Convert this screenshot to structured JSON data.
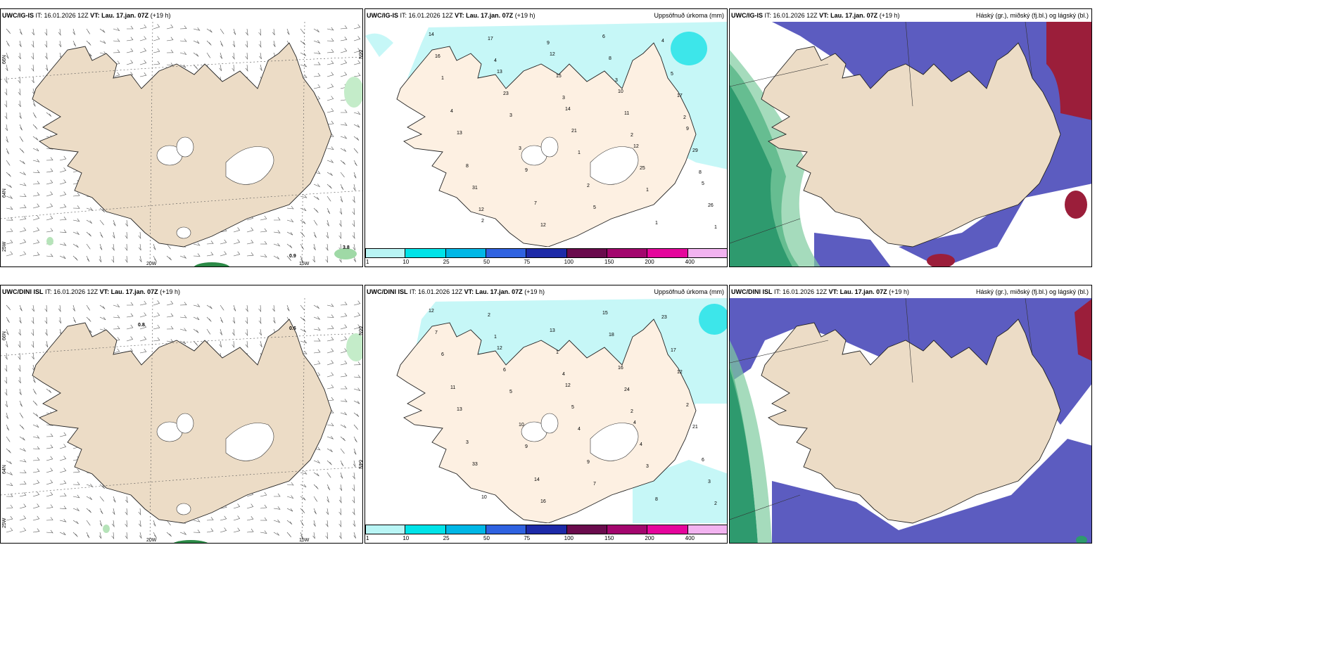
{
  "panels": {
    "ig_wind": {
      "model": "UWC/IG-IS",
      "it_label": "IT:",
      "it_value": "16.01.2026 12Z",
      "vt_label": "VT:",
      "vt_value": "Lau. 17.jan. 07Z",
      "lead": "(+19 h)",
      "labels": [
        "0.9",
        "3.8"
      ]
    },
    "ig_precip": {
      "model": "UWC/IG-IS",
      "it_label": "IT:",
      "it_value": "16.01.2026 12Z",
      "vt_label": "VT:",
      "vt_value": "Lau. 17.jan. 07Z",
      "lead": "(+19 h)",
      "title": "Uppsöfnuð úrkoma (mm)",
      "values": [
        "14",
        "13",
        "14",
        "12",
        "5",
        "2",
        "12",
        "10",
        "9",
        "8",
        "7",
        "6",
        "5",
        "4",
        "3",
        "2",
        "1",
        "16",
        "23",
        "21",
        "25",
        "26",
        "17",
        "15",
        "11",
        "29",
        "31",
        "12",
        "8",
        "17",
        "13",
        "9",
        "5",
        "4",
        "1",
        "3",
        "1",
        "1",
        "1",
        "4",
        "3",
        "2",
        "8",
        "12",
        "9",
        "3",
        "2"
      ]
    },
    "ig_cloud": {
      "model": "UWC/IG-IS",
      "it_label": "IT:",
      "it_value": "16.01.2026 12Z",
      "vt_label": "VT:",
      "vt_value": "Lau. 17.jan. 07Z",
      "lead": "(+19 h)",
      "title": "Háský (gr.), miðský (fj.bl.) og lágský (bl.)"
    },
    "dini_wind": {
      "model": "UWC/DINI ISL",
      "it_label": "IT:",
      "it_value": "16.01.2026 12Z",
      "vt_label": "VT:",
      "vt_value": "Lau. 17.jan. 07Z",
      "lead": "(+19 h)",
      "labels": [
        "0.8",
        "0.6"
      ]
    },
    "dini_precip": {
      "model": "UWC/DINI ISL",
      "it_label": "IT:",
      "it_value": "16.01.2026 12Z",
      "vt_label": "VT:",
      "vt_value": "Lau. 17.jan. 07Z",
      "lead": "(+19 h)",
      "title": "Uppsöfnuð úrkoma (mm)",
      "values": [
        "12",
        "12",
        "12",
        "4",
        "6",
        "10",
        "13",
        "16",
        "2",
        "3",
        "14",
        "15",
        "17",
        "11",
        "10",
        "9",
        "8",
        "7",
        "6",
        "5",
        "4",
        "3",
        "2",
        "1",
        "24",
        "21",
        "33",
        "16",
        "18",
        "12",
        "13",
        "9",
        "7",
        "23",
        "6",
        "5",
        "4",
        "3",
        "2",
        "1",
        "4",
        "2"
      ]
    },
    "dini_cloud": {
      "model": "UWC/DINI ISL",
      "it_label": "IT:",
      "it_value": "16.01.2026 12Z",
      "vt_label": "VT:",
      "vt_value": "Lau. 17.jan. 07Z",
      "lead": "(+19 h)",
      "title": "Háský (gr.), miðský (fj.bl.) og lágský (bl.)"
    }
  },
  "axes": {
    "lat_66": "66N",
    "lat_64": "64N",
    "lon_25": "25W",
    "lon_20": "20W",
    "lon_15": "15W"
  },
  "colorbar": {
    "ticks": [
      "1",
      "10",
      "25",
      "50",
      "75",
      "100",
      "150",
      "200",
      "400"
    ],
    "colors": [
      "#b9f5f5",
      "#00e3e8",
      "#00b7e6",
      "#2f62e0",
      "#1d2aa8",
      "#6a0b4d",
      "#a3066e",
      "#e5059c",
      "#f2b3f0"
    ]
  },
  "colors": {
    "land": "#ecdcc6",
    "precip_light": "#c6f7f7",
    "low_cloud": "#5c5cc0",
    "high_cloud": "#3a8f6a",
    "mid_cloud": "#9b1e3a"
  }
}
